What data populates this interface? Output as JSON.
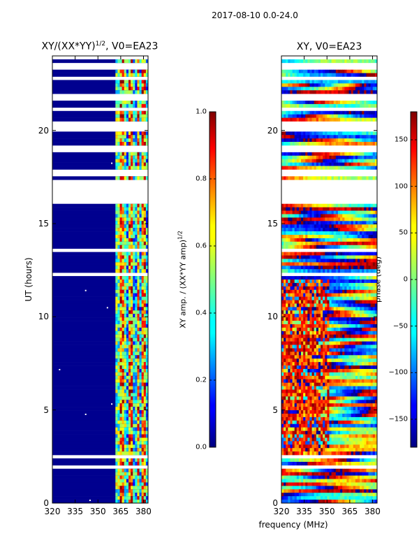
{
  "figure": {
    "suptitle": "2017-08-10 0.0-24.0",
    "xlabel_shared": "frequency (MHz)"
  },
  "chart_data": [
    {
      "type": "heatmap",
      "title_main": "XY/(XX*YY)",
      "title_sup": "1/2",
      "title_suffix": ", V0=EA23",
      "ylabel": "UT (hours)",
      "xlim": [
        320,
        383
      ],
      "ylim": [
        0,
        24
      ],
      "x_ticks": [
        320,
        335,
        350,
        365,
        380
      ],
      "y_ticks": [
        0,
        5,
        10,
        15,
        20
      ],
      "colorbar": {
        "label_main": "XY amp. / (XX*YY amp)",
        "label_sup": "1/2",
        "range": [
          0.0,
          1.0
        ],
        "ticks": [
          "0.0",
          "0.2",
          "0.4",
          "0.6",
          "0.8",
          "1.0"
        ],
        "colormap": "jet"
      }
    },
    {
      "type": "heatmap",
      "title": "XY, V0=EA23",
      "xlim": [
        320,
        383
      ],
      "ylim": [
        0,
        24
      ],
      "x_ticks": [
        320,
        335,
        350,
        365,
        380
      ],
      "y_ticks": [
        0,
        5,
        10,
        15,
        20
      ],
      "colorbar": {
        "label": "phase (deg)",
        "range": [
          -180,
          180
        ],
        "ticks": [
          "-150",
          "-100",
          "-50",
          "0",
          "50",
          "100",
          "150"
        ],
        "colormap": "jet"
      }
    }
  ],
  "colors": {
    "jet_low": "#00007f",
    "jet_mid": "#7fff7f",
    "jet_high": "#7f0000"
  }
}
